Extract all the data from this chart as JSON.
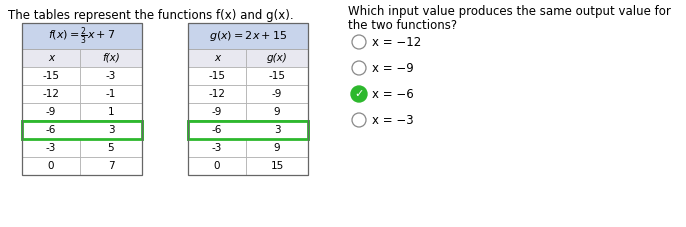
{
  "title_text": "The tables represent the functions f(x) and g(x).",
  "question_line1": "Which input value produces the same output value for",
  "question_line2": "the two functions?",
  "f_col1": [
    "x",
    "-15",
    "-12",
    "-9",
    "-6",
    "-3",
    "0"
  ],
  "f_col2": [
    "f(x)",
    "-3",
    "-1",
    "1",
    "3",
    "5",
    "7"
  ],
  "g_col1": [
    "x",
    "-15",
    "-12",
    "-9",
    "-6",
    "-3",
    "0"
  ],
  "g_col2": [
    "g(x)",
    "-15",
    "-9",
    "9",
    "3",
    "9",
    "15"
  ],
  "highlight_row_idx": 4,
  "highlight_color": "#2db82d",
  "header_bg": "#c8d4eb",
  "col_header_bg": "#e8e8f0",
  "options": [
    "x = −12",
    "x = −9",
    "x = −6",
    "x = −3"
  ],
  "correct_index": 2,
  "bg_color": "#ffffff",
  "title_fontsize": 8.5,
  "question_fontsize": 8.5,
  "cell_fontsize": 7.5,
  "header_fontsize": 8.0,
  "option_fontsize": 8.5
}
